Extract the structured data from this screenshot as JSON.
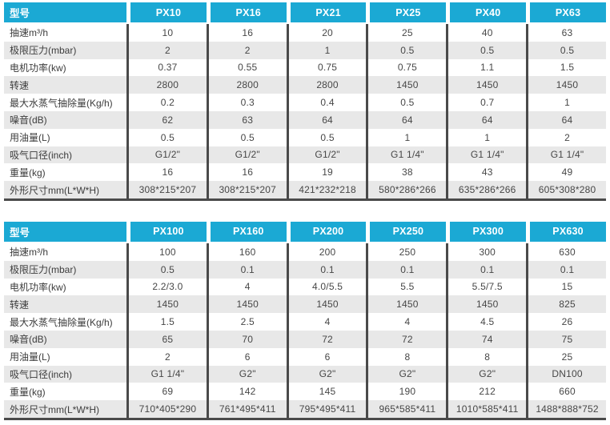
{
  "colors": {
    "accent": "#1ba9d4",
    "row_alt": "#e8e8e8",
    "divider": "#4a4a4a"
  },
  "tables": [
    {
      "header_label": "型号",
      "models": [
        "PX10",
        "PX16",
        "PX21",
        "PX25",
        "PX40",
        "PX63"
      ],
      "rows": [
        {
          "label": "抽速m³/h",
          "values": [
            "10",
            "16",
            "20",
            "25",
            "40",
            "63"
          ]
        },
        {
          "label": "极限压力(mbar)",
          "values": [
            "2",
            "2",
            "1",
            "0.5",
            "0.5",
            "0.5"
          ]
        },
        {
          "label": "电机功率(kw)",
          "values": [
            "0.37",
            "0.55",
            "0.75",
            "0.75",
            "1.1",
            "1.5"
          ]
        },
        {
          "label": "转速",
          "values": [
            "2800",
            "2800",
            "2800",
            "1450",
            "1450",
            "1450"
          ]
        },
        {
          "label": "最大水蒸气抽除量(Kg/h)",
          "values": [
            "0.2",
            "0.3",
            "0.4",
            "0.5",
            "0.7",
            "1"
          ]
        },
        {
          "label": "噪音(dB)",
          "values": [
            "62",
            "63",
            "64",
            "64",
            "64",
            "64"
          ]
        },
        {
          "label": "用油量(L)",
          "values": [
            "0.5",
            "0.5",
            "0.5",
            "1",
            "1",
            "2"
          ]
        },
        {
          "label": "吸气口径(inch)",
          "values": [
            "G1/2\"",
            "G1/2\"",
            "G1/2\"",
            "G1 1/4\"",
            "G1 1/4\"",
            "G1 1/4\""
          ]
        },
        {
          "label": "重量(kg)",
          "values": [
            "16",
            "16",
            "19",
            "38",
            "43",
            "49"
          ]
        },
        {
          "label": "外形尺寸mm(L*W*H)",
          "values": [
            "308*215*207",
            "308*215*207",
            "421*232*218",
            "580*286*266",
            "635*286*266",
            "605*308*280"
          ]
        }
      ]
    },
    {
      "header_label": "型号",
      "models": [
        "PX100",
        "PX160",
        "PX200",
        "PX250",
        "PX300",
        "PX630"
      ],
      "rows": [
        {
          "label": "抽速m³/h",
          "values": [
            "100",
            "160",
            "200",
            "250",
            "300",
            "630"
          ]
        },
        {
          "label": "极限压力(mbar)",
          "values": [
            "0.5",
            "0.1",
            "0.1",
            "0.1",
            "0.1",
            "0.1"
          ]
        },
        {
          "label": "电机功率(kw)",
          "values": [
            "2.2/3.0",
            "4",
            "4.0/5.5",
            "5.5",
            "5.5/7.5",
            "15"
          ]
        },
        {
          "label": "转速",
          "values": [
            "1450",
            "1450",
            "1450",
            "1450",
            "1450",
            "825"
          ]
        },
        {
          "label": "最大水蒸气抽除量(Kg/h)",
          "values": [
            "1.5",
            "2.5",
            "4",
            "4",
            "4.5",
            "26"
          ]
        },
        {
          "label": "噪音(dB)",
          "values": [
            "65",
            "70",
            "72",
            "72",
            "74",
            "75"
          ]
        },
        {
          "label": "用油量(L)",
          "values": [
            "2",
            "6",
            "6",
            "8",
            "8",
            "25"
          ]
        },
        {
          "label": "吸气口径(inch)",
          "values": [
            "G1 1/4\"",
            "G2\"",
            "G2\"",
            "G2\"",
            "G2\"",
            "DN100"
          ]
        },
        {
          "label": "重量(kg)",
          "values": [
            "69",
            "142",
            "145",
            "190",
            "212",
            "660"
          ]
        },
        {
          "label": "外形尺寸mm(L*W*H)",
          "values": [
            "710*405*290",
            "761*495*411",
            "795*495*411",
            "965*585*411",
            "1010*585*411",
            "1488*888*752"
          ]
        }
      ]
    }
  ]
}
